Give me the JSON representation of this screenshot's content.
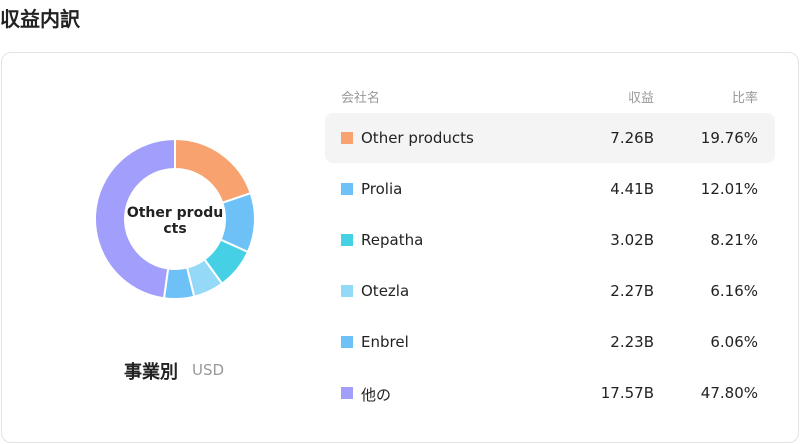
{
  "page_title": "収益内訳",
  "chart_data": {
    "type": "pie",
    "donut": true,
    "center_label": "Other products",
    "categories": [
      "Other products",
      "Prolia",
      "Repatha",
      "Otezla",
      "Enbrel",
      "他の"
    ],
    "values": [
      19.76,
      12.01,
      8.21,
      6.16,
      6.06,
      47.8
    ],
    "value_labels": [
      "19.76%",
      "12.01%",
      "8.21%",
      "6.16%",
      "6.06%",
      "47.80%"
    ],
    "colors": [
      "#f8a36f",
      "#6ec1f7",
      "#45d0e5",
      "#95d9f8",
      "#6ec1f7",
      "#a29efc"
    ]
  },
  "caption": {
    "title": "事業別",
    "unit": "USD"
  },
  "table": {
    "headers": [
      "会社名",
      "収益",
      "比率"
    ],
    "revenue": [
      "7.26B",
      "4.41B",
      "3.02B",
      "2.27B",
      "2.23B",
      "17.57B"
    ]
  }
}
